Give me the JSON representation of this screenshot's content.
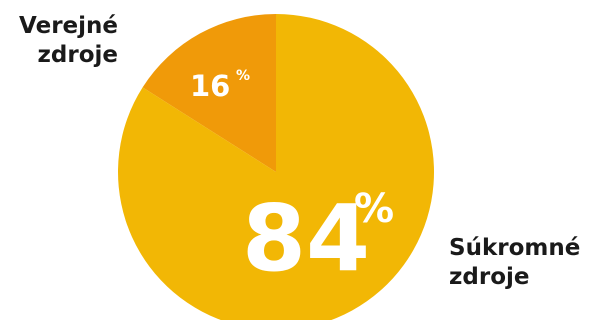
{
  "chart_data": {
    "type": "pie",
    "slices": [
      {
        "label_lines": [
          "Verejné",
          "zdroje"
        ],
        "value": 16,
        "value_label": "16",
        "percent_sign": "%",
        "color": "#F09A09"
      },
      {
        "label_lines": [
          "Súkromné",
          "zdroje"
        ],
        "value": 84,
        "value_label": "84",
        "percent_sign": "%",
        "color": "#F2B705"
      }
    ]
  }
}
